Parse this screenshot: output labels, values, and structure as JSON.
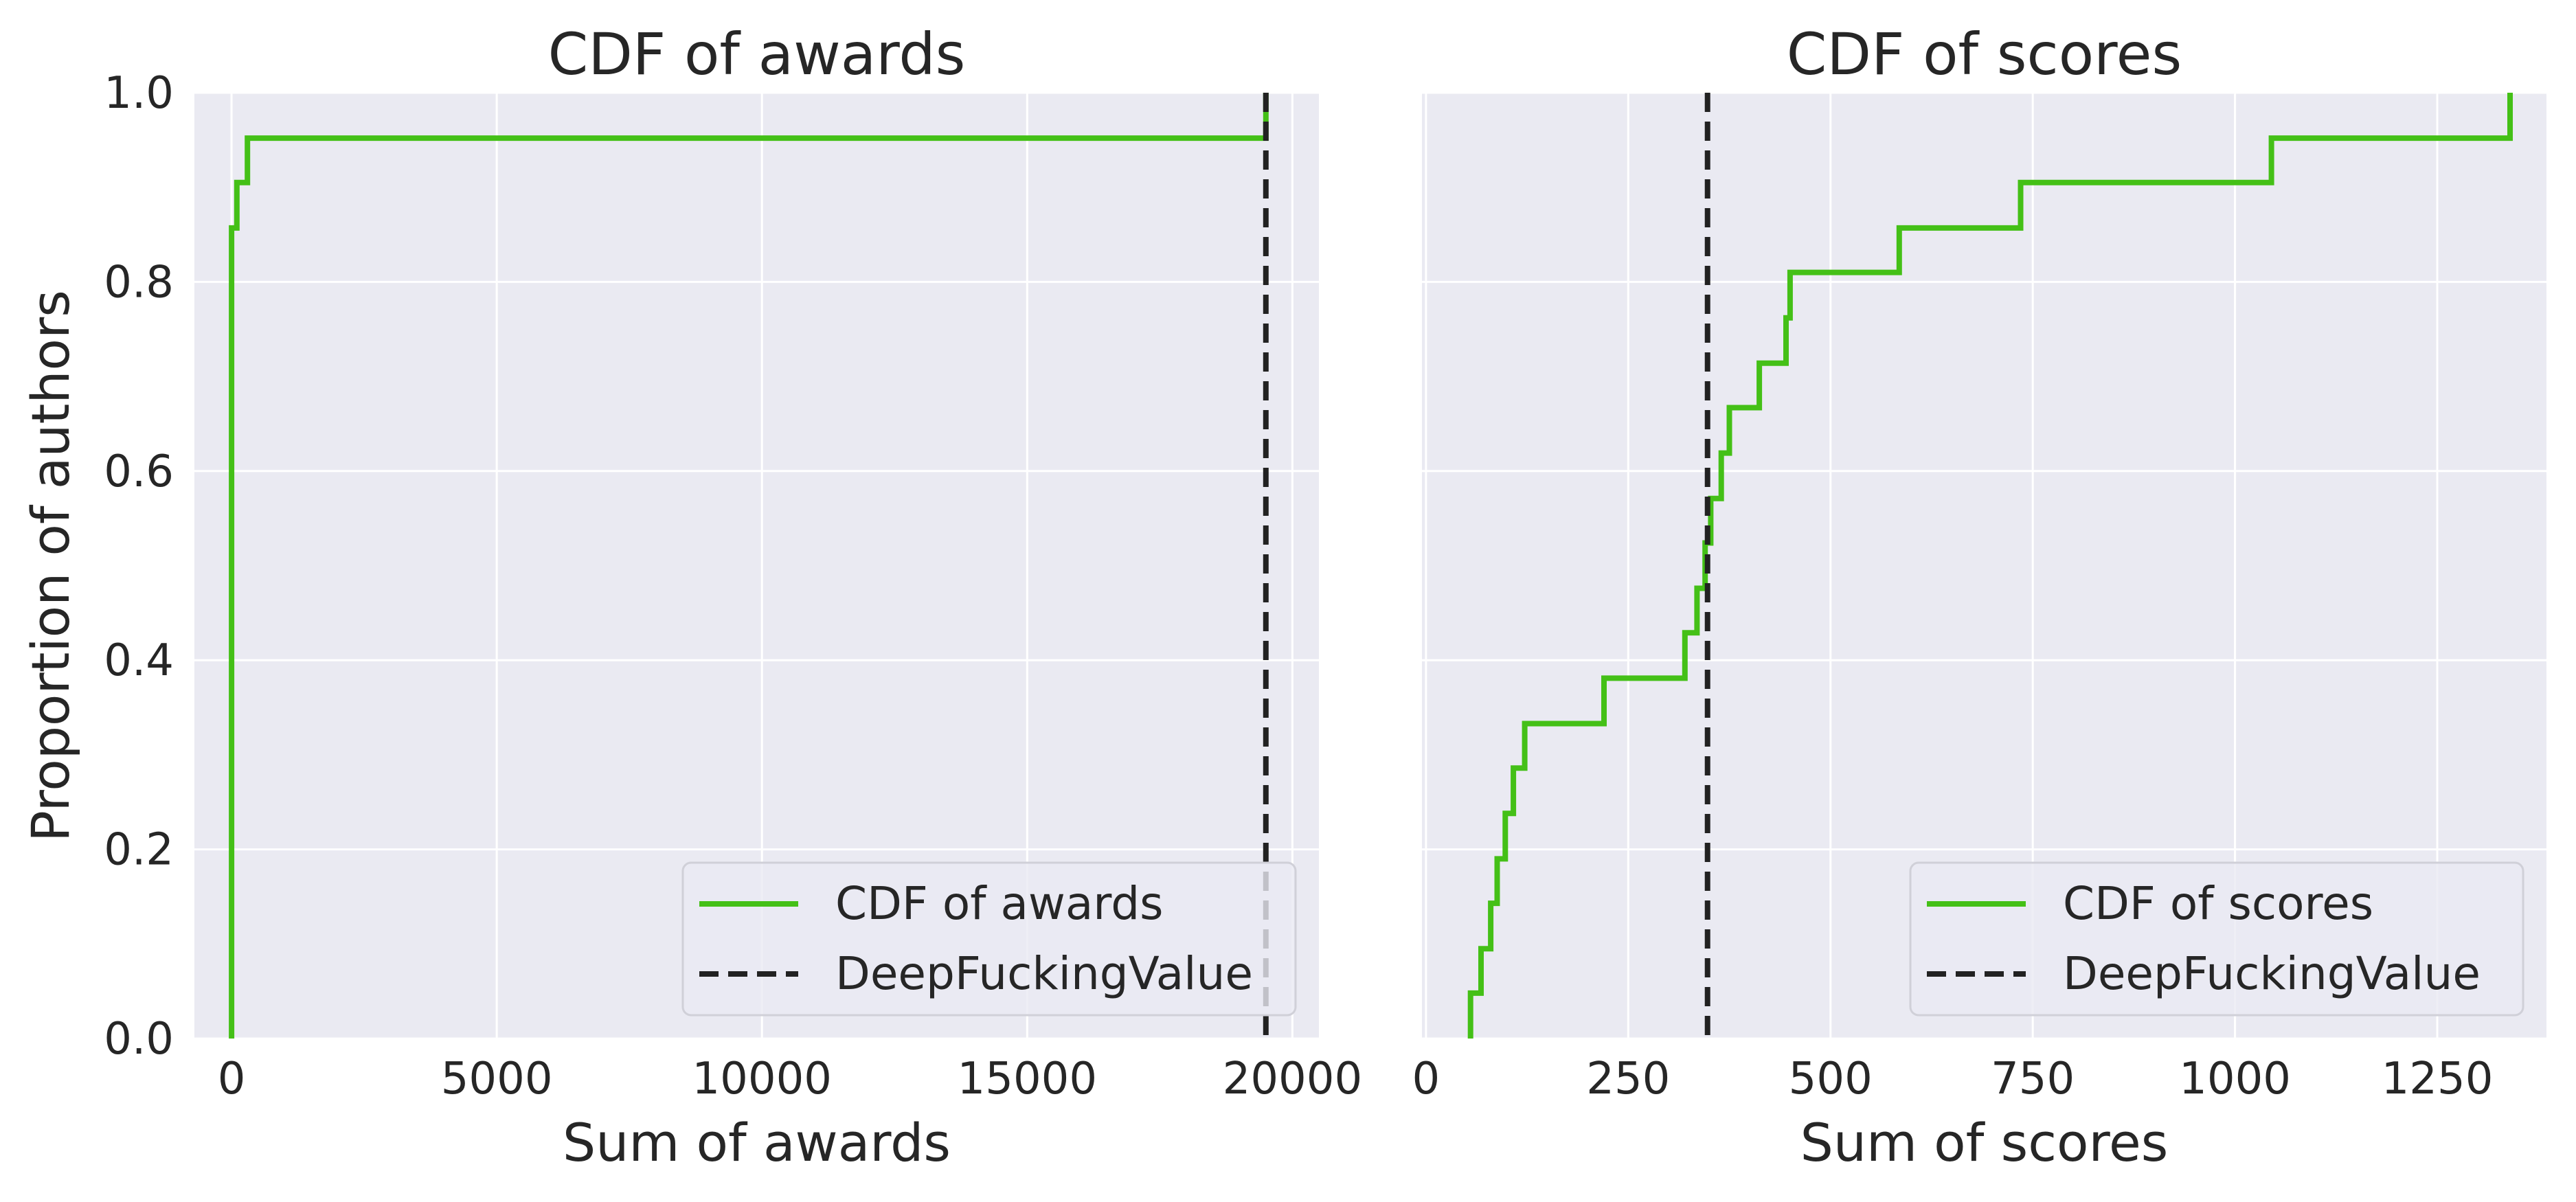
{
  "colors": {
    "background": "#eaeaf2",
    "grid": "#ffffff",
    "cdf_line": "#44c017",
    "reference_line": "#222222",
    "text": "#262626"
  },
  "shared_ylabel": "Proportion of authors",
  "chart_data": [
    {
      "type": "line",
      "title": "CDF of awards",
      "xlabel": "Sum of awards",
      "ylabel": "Proportion of authors",
      "xlim": [
        -700,
        20500
      ],
      "ylim": [
        0,
        1
      ],
      "xticks": [
        0,
        5000,
        10000,
        15000,
        20000
      ],
      "xtick_labels": [
        "0",
        "5000",
        "10000",
        "15000",
        "20000"
      ],
      "yticks": [
        0.0,
        0.2,
        0.4,
        0.6,
        0.8,
        1.0
      ],
      "ytick_labels": [
        "0.0",
        "0.2",
        "0.4",
        "0.6",
        "0.8",
        "1.0"
      ],
      "grid": true,
      "legend_position": "lower-right",
      "series": [
        {
          "name": "CDF of awards",
          "style": "step",
          "x": [
            0,
            0,
            100,
            100,
            300,
            300,
            19500,
            19500
          ],
          "y": [
            0,
            0.857,
            0.857,
            0.905,
            0.905,
            0.952,
            0.952,
            1.0
          ]
        },
        {
          "name": "DeepFuckingValue",
          "style": "dashed-vertical",
          "x": 19500
        }
      ]
    },
    {
      "type": "line",
      "title": "CDF of scores",
      "xlabel": "Sum of scores",
      "ylabel": "",
      "xlim": [
        -5,
        1385
      ],
      "ylim": [
        0,
        1
      ],
      "xticks": [
        0,
        250,
        500,
        750,
        1000,
        1250
      ],
      "xtick_labels": [
        "0",
        "250",
        "500",
        "750",
        "1000",
        "1250"
      ],
      "yticks": [
        0.0,
        0.2,
        0.4,
        0.6,
        0.8,
        1.0
      ],
      "grid": true,
      "legend_position": "lower-right",
      "series": [
        {
          "name": "CDF of scores",
          "style": "step",
          "x": [
            55,
            55,
            68,
            68,
            80,
            80,
            88,
            88,
            98,
            98,
            108,
            108,
            122,
            122,
            220,
            220,
            320,
            320,
            335,
            335,
            345,
            345,
            352,
            352,
            365,
            365,
            375,
            375,
            412,
            412,
            445,
            445,
            450,
            450,
            585,
            585,
            735,
            735,
            1045,
            1045,
            1340,
            1340
          ],
          "y": [
            0,
            0.048,
            0.048,
            0.095,
            0.095,
            0.143,
            0.143,
            0.19,
            0.19,
            0.238,
            0.238,
            0.286,
            0.286,
            0.333,
            0.333,
            0.381,
            0.381,
            0.429,
            0.429,
            0.476,
            0.476,
            0.524,
            0.524,
            0.571,
            0.571,
            0.619,
            0.619,
            0.667,
            0.667,
            0.714,
            0.714,
            0.762,
            0.762,
            0.81,
            0.81,
            0.857,
            0.857,
            0.905,
            0.905,
            0.952,
            0.952,
            1.0
          ]
        },
        {
          "name": "DeepFuckingValue",
          "style": "dashed-vertical",
          "x": 348
        }
      ]
    }
  ]
}
